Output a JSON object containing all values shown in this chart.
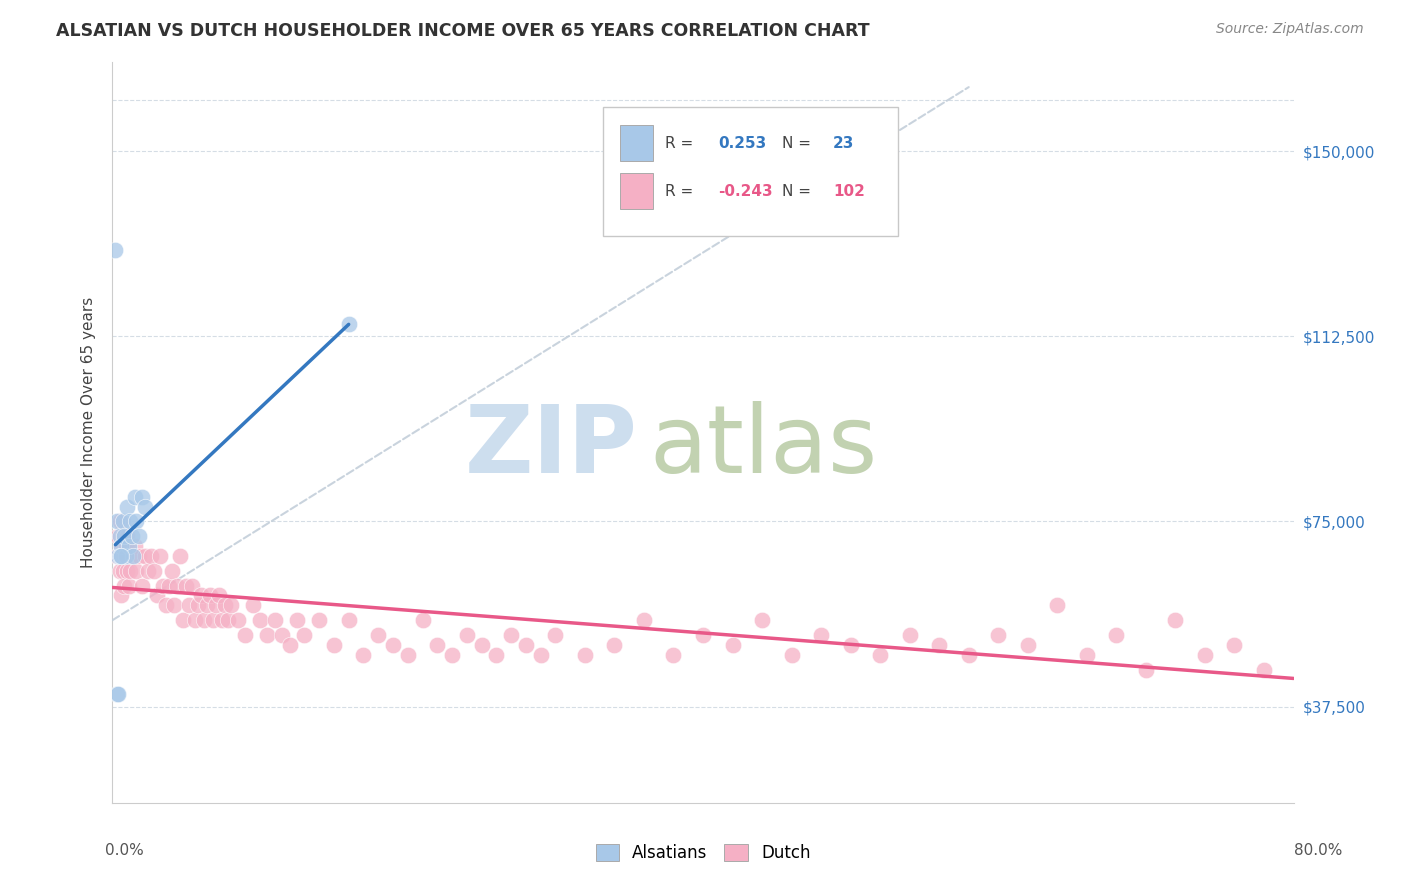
{
  "title": "ALSATIAN VS DUTCH HOUSEHOLDER INCOME OVER 65 YEARS CORRELATION CHART",
  "source": "Source: ZipAtlas.com",
  "ylabel": "Householder Income Over 65 years",
  "yticks": [
    0,
    37500,
    75000,
    112500,
    150000
  ],
  "ytick_labels_right": [
    "$37,500",
    "$75,000",
    "$112,500",
    "$150,000"
  ],
  "xmin": 0.0,
  "xmax": 0.8,
  "ymin": 18000,
  "ymax": 168000,
  "legend_r_alsatian": "0.253",
  "legend_n_alsatian": "23",
  "legend_r_dutch": "-0.243",
  "legend_n_dutch": "102",
  "alsatian_color": "#a8c8e8",
  "dutch_color": "#f5b0c5",
  "alsatian_line_color": "#3478c0",
  "dutch_line_color": "#e85888",
  "title_color": "#333333",
  "source_color": "#888888",
  "watermark_zip_color": "#b8d0e8",
  "watermark_atlas_color": "#a8c090",
  "grid_color": "#d5dde5",
  "alsatian_x": [
    0.002,
    0.003,
    0.004,
    0.005,
    0.006,
    0.007,
    0.008,
    0.009,
    0.01,
    0.011,
    0.012,
    0.013,
    0.014,
    0.015,
    0.016,
    0.018,
    0.02,
    0.022,
    0.003,
    0.004,
    0.16,
    0.005,
    0.006
  ],
  "alsatian_y": [
    130000,
    75000,
    68000,
    72000,
    70000,
    75000,
    72000,
    68000,
    78000,
    70000,
    75000,
    72000,
    68000,
    80000,
    75000,
    72000,
    80000,
    78000,
    40000,
    40000,
    115000,
    68000,
    68000
  ],
  "dutch_x": [
    0.003,
    0.004,
    0.005,
    0.005,
    0.006,
    0.006,
    0.007,
    0.007,
    0.008,
    0.008,
    0.009,
    0.009,
    0.01,
    0.01,
    0.011,
    0.012,
    0.013,
    0.015,
    0.016,
    0.018,
    0.02,
    0.022,
    0.024,
    0.026,
    0.028,
    0.03,
    0.032,
    0.034,
    0.036,
    0.038,
    0.04,
    0.042,
    0.044,
    0.046,
    0.048,
    0.05,
    0.052,
    0.054,
    0.056,
    0.058,
    0.06,
    0.062,
    0.064,
    0.066,
    0.068,
    0.07,
    0.072,
    0.074,
    0.076,
    0.078,
    0.08,
    0.085,
    0.09,
    0.095,
    0.1,
    0.105,
    0.11,
    0.115,
    0.12,
    0.125,
    0.13,
    0.14,
    0.15,
    0.16,
    0.17,
    0.18,
    0.19,
    0.2,
    0.21,
    0.22,
    0.23,
    0.24,
    0.25,
    0.26,
    0.27,
    0.28,
    0.29,
    0.3,
    0.32,
    0.34,
    0.36,
    0.38,
    0.4,
    0.42,
    0.44,
    0.46,
    0.48,
    0.5,
    0.52,
    0.54,
    0.56,
    0.58,
    0.6,
    0.62,
    0.64,
    0.66,
    0.68,
    0.7,
    0.72,
    0.74,
    0.76,
    0.78
  ],
  "dutch_y": [
    68000,
    72000,
    75000,
    65000,
    60000,
    70000,
    65000,
    72000,
    68000,
    62000,
    70000,
    68000,
    72000,
    65000,
    62000,
    65000,
    68000,
    70000,
    65000,
    68000,
    62000,
    68000,
    65000,
    68000,
    65000,
    60000,
    68000,
    62000,
    58000,
    62000,
    65000,
    58000,
    62000,
    68000,
    55000,
    62000,
    58000,
    62000,
    55000,
    58000,
    60000,
    55000,
    58000,
    60000,
    55000,
    58000,
    60000,
    55000,
    58000,
    55000,
    58000,
    55000,
    52000,
    58000,
    55000,
    52000,
    55000,
    52000,
    50000,
    55000,
    52000,
    55000,
    50000,
    55000,
    48000,
    52000,
    50000,
    48000,
    55000,
    50000,
    48000,
    52000,
    50000,
    48000,
    52000,
    50000,
    48000,
    52000,
    48000,
    50000,
    55000,
    48000,
    52000,
    50000,
    55000,
    48000,
    52000,
    50000,
    48000,
    52000,
    50000,
    48000,
    52000,
    50000,
    58000,
    48000,
    52000,
    45000,
    55000,
    48000,
    50000,
    45000
  ]
}
